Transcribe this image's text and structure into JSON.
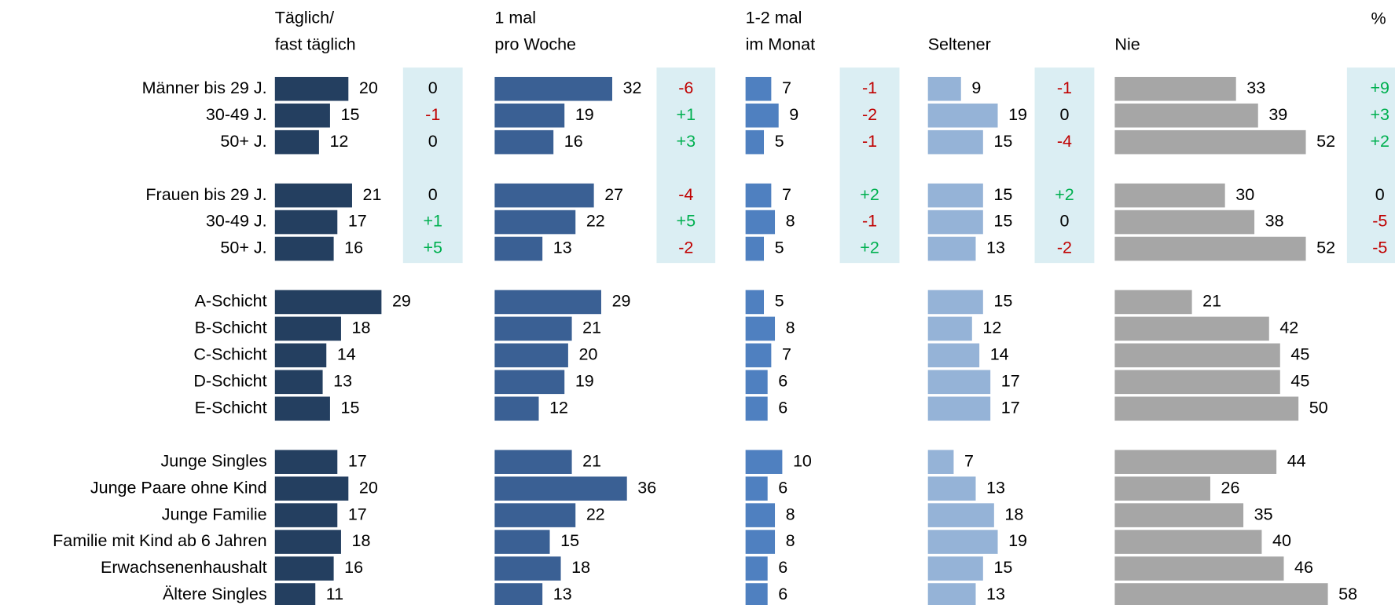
{
  "chart_data": {
    "type": "bar",
    "unit": "%",
    "categories": [
      "Männer bis 29 J.",
      "30-49 J.",
      "50+ J.",
      "Frauen bis 29 J.",
      "30-49 J.",
      "50+ J.",
      "A-Schicht",
      "B-Schicht",
      "C-Schicht",
      "D-Schicht",
      "E-Schicht",
      "Junge Singles",
      "Junge Paare ohne Kind",
      "Junge Familie",
      "Familie mit Kind ab 6 Jahren",
      "Erwachsenenhaushalt",
      "Ältere Singles"
    ],
    "series": [
      {
        "name": "Täglich/\nfast täglich",
        "color": "#243f60",
        "values": [
          20,
          15,
          12,
          21,
          17,
          16,
          29,
          18,
          14,
          13,
          15,
          17,
          20,
          17,
          18,
          16,
          11
        ],
        "change": {
          "values": [
            0,
            -1,
            0,
            0,
            1,
            5,
            null,
            null,
            null,
            null,
            null,
            null,
            null,
            null,
            null,
            null,
            null
          ],
          "value_labels": [
            "0",
            "-1",
            "0",
            "0",
            "+1",
            "+5",
            null,
            null,
            null,
            null,
            null,
            null,
            null,
            null,
            null,
            null,
            null
          ]
        }
      },
      {
        "name": "1 mal\npro Woche",
        "color": "#3a6094",
        "values": [
          32,
          19,
          16,
          27,
          22,
          13,
          29,
          21,
          20,
          19,
          12,
          21,
          36,
          22,
          15,
          18,
          13
        ],
        "change": {
          "values": [
            -6,
            1,
            3,
            -4,
            5,
            -2,
            null,
            null,
            null,
            null,
            null,
            null,
            null,
            null,
            null,
            null,
            null
          ],
          "value_labels": [
            "-6",
            "+1",
            "+3",
            "-4",
            "+5",
            "-2",
            null,
            null,
            null,
            null,
            null,
            null,
            null,
            null,
            null,
            null,
            null
          ]
        }
      },
      {
        "name": "1-2 mal\nim Monat",
        "color": "#4f80c0",
        "values": [
          7,
          9,
          5,
          7,
          8,
          5,
          5,
          8,
          7,
          6,
          6,
          10,
          6,
          8,
          8,
          6,
          6
        ],
        "change": {
          "values": [
            -1,
            -2,
            -1,
            2,
            -1,
            2,
            null,
            null,
            null,
            null,
            null,
            null,
            null,
            null,
            null,
            null,
            null
          ],
          "value_labels": [
            "-1",
            "-2",
            "-1",
            "+2",
            "-1",
            "+2",
            null,
            null,
            null,
            null,
            null,
            null,
            null,
            null,
            null,
            null,
            null
          ]
        }
      },
      {
        "name": "Seltener",
        "color": "#95b3d7",
        "values": [
          9,
          19,
          15,
          15,
          15,
          13,
          15,
          12,
          14,
          17,
          17,
          7,
          13,
          18,
          19,
          15,
          13
        ],
        "change": {
          "values": [
            -1,
            0,
            -4,
            2,
            0,
            -2,
            null,
            null,
            null,
            null,
            null,
            null,
            null,
            null,
            null,
            null,
            null
          ],
          "value_labels": [
            "-1",
            "0",
            "-4",
            "+2",
            "0",
            "-2",
            null,
            null,
            null,
            null,
            null,
            null,
            null,
            null,
            null,
            null,
            null
          ]
        }
      },
      {
        "name": "Nie",
        "color": "#a6a6a6",
        "values": [
          33,
          39,
          52,
          30,
          38,
          52,
          21,
          42,
          45,
          45,
          50,
          44,
          26,
          35,
          40,
          46,
          58
        ],
        "change": {
          "values": [
            9,
            3,
            2,
            0,
            -5,
            -5,
            null,
            null,
            null,
            null,
            null,
            null,
            null,
            null,
            null,
            null,
            null
          ],
          "value_labels": [
            "+9",
            "+3",
            "+2",
            "0",
            "-5",
            "-5",
            null,
            null,
            null,
            null,
            null,
            null,
            null,
            null,
            null,
            null,
            null
          ]
        }
      }
    ]
  }
}
